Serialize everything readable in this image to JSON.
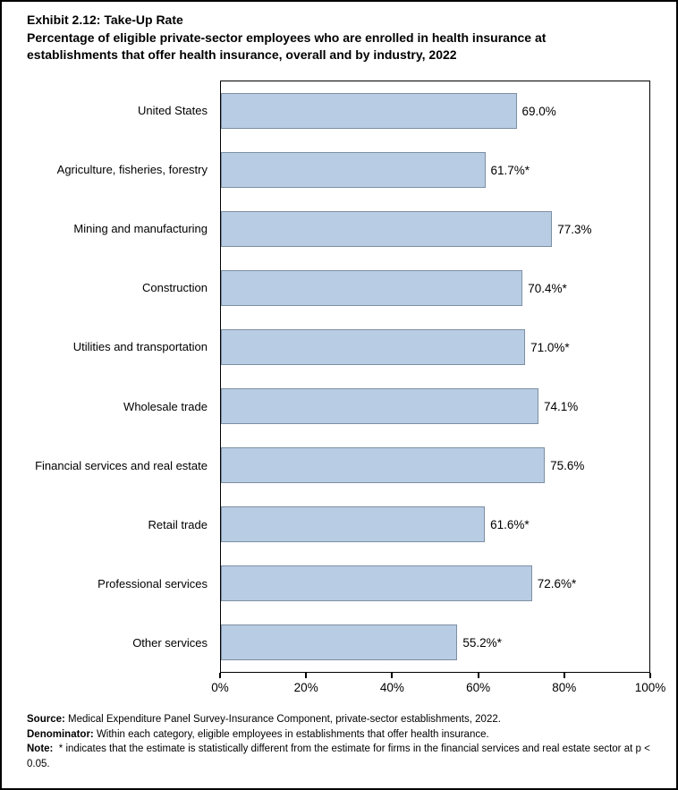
{
  "page": {
    "title": "Exhibit 2.12: Take-Up Rate",
    "subtitle": "Percentage of eligible private-sector employees who are enrolled in health insurance at establishments that offer health insurance, overall and by industry, 2022"
  },
  "chart_data": {
    "type": "bar",
    "orientation": "horizontal",
    "title": "Exhibit 2.12: Take-Up Rate",
    "subtitle": "Percentage of eligible private-sector employees who are enrolled in health insurance at establishments that offer health insurance, overall and by industry, 2022",
    "categories": [
      "United States",
      "Agriculture, fisheries, forestry",
      "Mining and manufacturing",
      "Construction",
      "Utilities and transportation",
      "Wholesale trade",
      "Financial services and real estate",
      "Retail trade",
      "Professional services",
      "Other services"
    ],
    "values": [
      69.0,
      61.7,
      77.3,
      70.4,
      71.0,
      74.1,
      75.6,
      61.6,
      72.6,
      55.2
    ],
    "value_labels": [
      "69.0%",
      "61.7%*",
      "77.3%",
      "70.4%*",
      "71.0%*",
      "74.1%",
      "75.6%",
      "61.6%*",
      "72.6%*",
      "55.2%*"
    ],
    "xlim": [
      0,
      100
    ],
    "x_ticks": [
      "0%",
      "20%",
      "40%",
      "60%",
      "80%",
      "100%"
    ],
    "grid": false,
    "legend": "none",
    "bar_fill": "#B8CCE4",
    "bar_border": "#7D8FA3"
  },
  "notes": {
    "source_label": "Source:",
    "source_text": "Medical Expenditure Panel Survey-Insurance Component, private-sector establishments, 2022.",
    "denominator_label": "Denominator:",
    "denominator_text": "Within each category, eligible employees in establishments that offer health insurance.",
    "note_label": "Note:",
    "note_text": "* indicates that the estimate is statistically different from the estimate for firms in the financial services and real estate sector at p < 0.05."
  }
}
